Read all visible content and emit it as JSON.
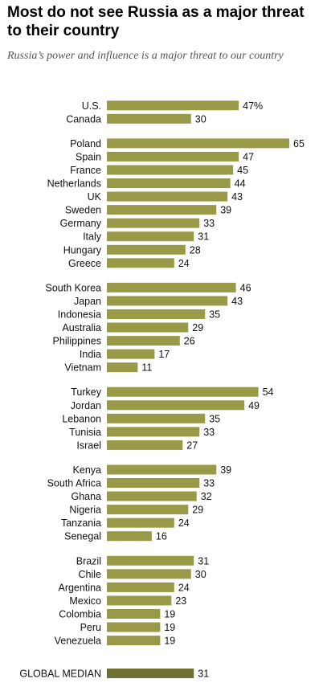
{
  "title": "Most do not see Russia as a major threat to their country",
  "subtitle": "Russia’s power and influence is a major threat to our country",
  "colors": {
    "bar": "#999a47",
    "median_bar": "#6e7033",
    "text": "#111111"
  },
  "chart_data": {
    "type": "bar",
    "orientation": "horizontal",
    "title": "Most do not see Russia as a major threat to their country",
    "subtitle": "Russia’s power and influence is a major threat to our country",
    "xlim": [
      0,
      65
    ],
    "value_suffix_first": "%",
    "groups": [
      {
        "categories": [
          "U.S.",
          "Canada"
        ],
        "values": [
          47,
          30
        ]
      },
      {
        "categories": [
          "Poland",
          "Spain",
          "France",
          "Netherlands",
          "UK",
          "Sweden",
          "Germany",
          "Italy",
          "Hungary",
          "Greece"
        ],
        "values": [
          65,
          47,
          45,
          44,
          43,
          39,
          33,
          31,
          28,
          24
        ]
      },
      {
        "categories": [
          "South Korea",
          "Japan",
          "Indonesia",
          "Australia",
          "Philippines",
          "India",
          "Vietnam"
        ],
        "values": [
          46,
          43,
          35,
          29,
          26,
          17,
          11
        ]
      },
      {
        "categories": [
          "Turkey",
          "Jordan",
          "Lebanon",
          "Tunisia",
          "Israel"
        ],
        "values": [
          54,
          49,
          35,
          33,
          27
        ]
      },
      {
        "categories": [
          "Kenya",
          "South Africa",
          "Ghana",
          "Nigeria",
          "Tanzania",
          "Senegal"
        ],
        "values": [
          39,
          33,
          32,
          29,
          24,
          16
        ]
      },
      {
        "categories": [
          "Brazil",
          "Chile",
          "Argentina",
          "Mexico",
          "Colombia",
          "Peru",
          "Venezuela"
        ],
        "values": [
          31,
          30,
          24,
          23,
          19,
          19,
          19
        ]
      }
    ],
    "median": {
      "label": "GLOBAL MEDIAN",
      "value": 31
    }
  }
}
